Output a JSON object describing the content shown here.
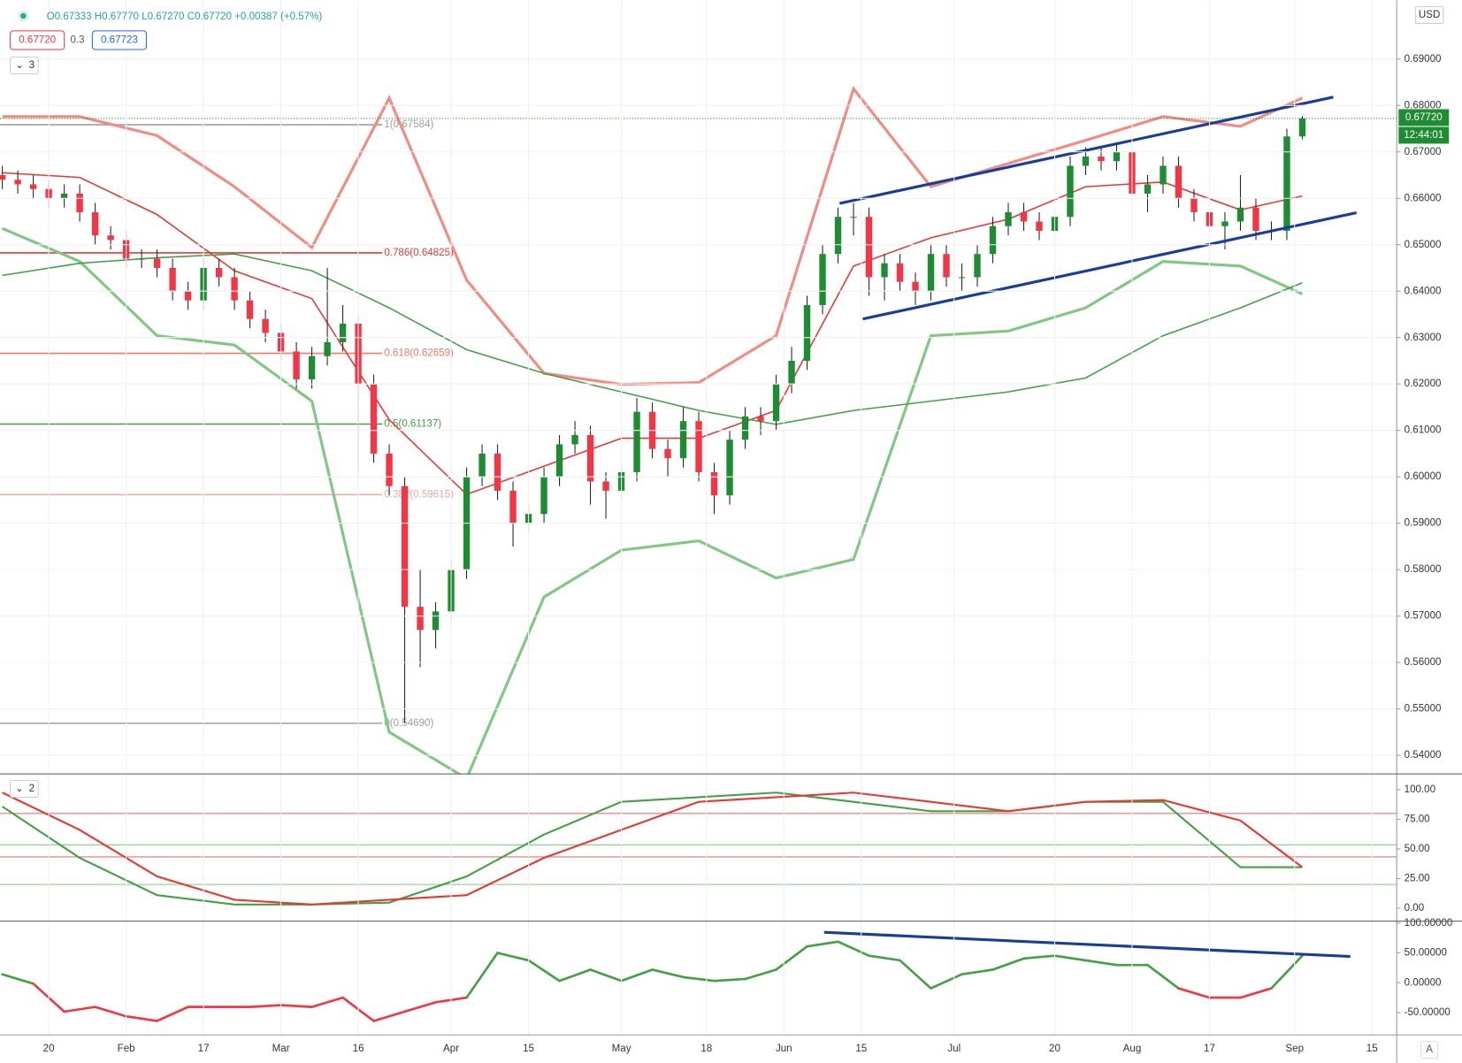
{
  "header": {
    "ohlc": "O0.67333 H0.67770 L0.67270 C0.67720 +0.00387 (+0.57%)",
    "box_1": "0.67720",
    "box_2": "0.3",
    "box_3": "0.67723",
    "pane_1_count": "3",
    "pane_2_count": "2",
    "currency": "USD",
    "price_tag": "0.67720",
    "countdown": "12:44:01",
    "scale_mode": "A"
  },
  "chart_data": [
    {
      "type": "candlestick",
      "color_up": "#1e8c32",
      "color_down": "#f23645",
      "x": [
        -6,
        -4,
        -2,
        0,
        2,
        4,
        6,
        8,
        10,
        12,
        14,
        16,
        18,
        20,
        22,
        24,
        26,
        28,
        30,
        32,
        34,
        36,
        38,
        40,
        42,
        44,
        46,
        48,
        50,
        52,
        54,
        56,
        58,
        60,
        62,
        64,
        66,
        68,
        70,
        72,
        74,
        76,
        78,
        80,
        82,
        84,
        86,
        88,
        90,
        92,
        94,
        96,
        98,
        100,
        102,
        104,
        106,
        108,
        110,
        112,
        114,
        116,
        118,
        120,
        122,
        124,
        126,
        128,
        130,
        132,
        134,
        136,
        138,
        140,
        142,
        144,
        146,
        148,
        150,
        152,
        154,
        156,
        158,
        160,
        162
      ],
      "open": [
        0.665,
        0.664,
        0.663,
        0.662,
        0.66,
        0.661,
        0.657,
        0.652,
        0.651,
        0.647,
        0.647,
        0.645,
        0.64,
        0.638,
        0.645,
        0.643,
        0.638,
        0.634,
        0.631,
        0.627,
        0.621,
        0.626,
        0.629,
        0.633,
        0.62,
        0.605,
        0.598,
        0.572,
        0.567,
        0.571,
        0.58,
        0.6,
        0.605,
        0.597,
        0.59,
        0.592,
        0.6,
        0.607,
        0.609,
        0.599,
        0.597,
        0.601,
        0.614,
        0.606,
        0.604,
        0.612,
        0.601,
        0.596,
        0.608,
        0.613,
        0.612,
        0.62,
        0.625,
        0.637,
        0.648,
        0.656,
        0.656,
        0.643,
        0.646,
        0.642,
        0.64,
        0.648,
        0.643,
        0.643,
        0.648,
        0.654,
        0.657,
        0.655,
        0.653,
        0.656,
        0.667,
        0.669,
        0.668,
        0.67,
        0.661,
        0.663,
        0.667,
        0.66,
        0.657,
        0.654,
        0.655,
        0.658,
        0.653,
        0.653,
        0.67333
      ],
      "high": [
        0.667,
        0.666,
        0.665,
        0.664,
        0.663,
        0.663,
        0.659,
        0.654,
        0.653,
        0.649,
        0.649,
        0.647,
        0.642,
        0.647,
        0.647,
        0.645,
        0.64,
        0.636,
        0.633,
        0.629,
        0.628,
        0.645,
        0.637,
        0.635,
        0.622,
        0.607,
        0.6,
        0.58,
        0.573,
        0.582,
        0.602,
        0.607,
        0.607,
        0.599,
        0.594,
        0.602,
        0.609,
        0.612,
        0.611,
        0.601,
        0.603,
        0.617,
        0.616,
        0.608,
        0.615,
        0.614,
        0.603,
        0.61,
        0.615,
        0.615,
        0.622,
        0.628,
        0.639,
        0.65,
        0.658,
        0.659,
        0.658,
        0.648,
        0.648,
        0.644,
        0.65,
        0.65,
        0.646,
        0.65,
        0.656,
        0.659,
        0.659,
        0.657,
        0.658,
        0.669,
        0.671,
        0.671,
        0.672,
        0.672,
        0.665,
        0.669,
        0.669,
        0.662,
        0.659,
        0.657,
        0.665,
        0.66,
        0.655,
        0.675,
        0.6777
      ],
      "low": [
        0.662,
        0.661,
        0.66,
        0.658,
        0.658,
        0.655,
        0.65,
        0.649,
        0.645,
        0.645,
        0.643,
        0.638,
        0.636,
        0.636,
        0.641,
        0.636,
        0.632,
        0.629,
        0.625,
        0.619,
        0.619,
        0.624,
        0.627,
        0.601,
        0.603,
        0.596,
        0.5469,
        0.559,
        0.563,
        0.569,
        0.578,
        0.598,
        0.595,
        0.585,
        0.588,
        0.59,
        0.598,
        0.605,
        0.594,
        0.591,
        0.595,
        0.599,
        0.604,
        0.6,
        0.602,
        0.599,
        0.592,
        0.594,
        0.606,
        0.609,
        0.61,
        0.618,
        0.623,
        0.635,
        0.646,
        0.652,
        0.639,
        0.638,
        0.64,
        0.637,
        0.638,
        0.641,
        0.64,
        0.641,
        0.646,
        0.652,
        0.653,
        0.651,
        0.651,
        0.654,
        0.665,
        0.666,
        0.666,
        0.659,
        0.657,
        0.661,
        0.658,
        0.655,
        0.652,
        0.649,
        0.653,
        0.651,
        0.651,
        0.651,
        0.6727
      ],
      "close": [
        0.664,
        0.663,
        0.662,
        0.66,
        0.661,
        0.657,
        0.652,
        0.651,
        0.647,
        0.647,
        0.645,
        0.64,
        0.638,
        0.645,
        0.643,
        0.638,
        0.634,
        0.631,
        0.627,
        0.621,
        0.626,
        0.629,
        0.633,
        0.62,
        0.605,
        0.598,
        0.572,
        0.567,
        0.571,
        0.58,
        0.6,
        0.605,
        0.597,
        0.59,
        0.592,
        0.6,
        0.607,
        0.609,
        0.599,
        0.597,
        0.601,
        0.614,
        0.606,
        0.604,
        0.612,
        0.601,
        0.596,
        0.608,
        0.613,
        0.612,
        0.62,
        0.625,
        0.637,
        0.648,
        0.656,
        0.656,
        0.643,
        0.646,
        0.642,
        0.64,
        0.648,
        0.643,
        0.643,
        0.648,
        0.654,
        0.657,
        0.655,
        0.653,
        0.656,
        0.667,
        0.669,
        0.668,
        0.67,
        0.661,
        0.663,
        0.667,
        0.66,
        0.657,
        0.654,
        0.655,
        0.658,
        0.653,
        0.653,
        0.67333,
        0.6772
      ],
      "overlay_x": [
        -6,
        4,
        14,
        24,
        34,
        44,
        54,
        64,
        74,
        84,
        94,
        104,
        114,
        124,
        134,
        144,
        154,
        162
      ],
      "overlays": [
        {
          "color": "#f28b82",
          "width": 3,
          "values": [
            0.6776,
            0.6776,
            0.6735,
            0.6625,
            0.6494,
            0.6816,
            0.6424,
            0.6223,
            0.6199,
            0.6203,
            0.6304,
            0.6836,
            0.6625,
            0.6675,
            0.6725,
            0.6776,
            0.6755,
            0.6816
          ]
        },
        {
          "color": "#81c784",
          "width": 3,
          "values": [
            0.6535,
            0.6464,
            0.6304,
            0.6284,
            0.6163,
            0.545,
            0.535,
            0.5741,
            0.5842,
            0.5862,
            0.5782,
            0.5822,
            0.6304,
            0.6314,
            0.6364,
            0.6464,
            0.6454,
            0.6394
          ]
        },
        {
          "color": "#e53935",
          "width": 1.5,
          "values": [
            0.6655,
            0.6645,
            0.6565,
            0.6444,
            0.6384,
            0.6123,
            0.5962,
            0.6023,
            0.6083,
            0.6083,
            0.6143,
            0.6454,
            0.6515,
            0.6555,
            0.6625,
            0.6635,
            0.6575,
            0.6605
          ]
        },
        {
          "color": "#43a047",
          "width": 1.5,
          "values": [
            0.6434,
            0.646,
            0.6472,
            0.648,
            0.6444,
            0.6364,
            0.6274,
            0.6223,
            0.6183,
            0.6143,
            0.6113,
            0.6143,
            0.6163,
            0.6183,
            0.6213,
            0.6304,
            0.6364,
            0.6418
          ]
        }
      ],
      "fib_levels": [
        {
          "value": 0.67584,
          "label": "1(0.67584)",
          "color": "#9e9e9e"
        },
        {
          "value": 0.64825,
          "label": "0.786(0.64825)",
          "color": "#e53935"
        },
        {
          "value": 0.62659,
          "label": "0.618(0.62659)",
          "color": "#ef7b6b"
        },
        {
          "value": 0.61137,
          "label": "0.5(0.61137)",
          "color": "#43a047"
        },
        {
          "value": 0.59615,
          "label": "0.382(0.59615)",
          "color": "#f4a6a0"
        },
        {
          "value": 0.5469,
          "label": "0(0.54690)",
          "color": "#9e9e9e"
        }
      ],
      "trendlines": [
        {
          "x": [
            102.2,
            166
          ],
          "values": [
            0.6589,
            0.6818
          ]
        },
        {
          "x": [
            105.2,
            169
          ],
          "values": [
            0.634,
            0.6569
          ]
        }
      ],
      "trend_color": "#1a3d9c",
      "last_price": 0.6772,
      "xlim": [
        -6.3,
        174.2
      ],
      "xticks": [
        {
          "value": 0,
          "label": "20"
        },
        {
          "value": 10,
          "label": "Feb"
        },
        {
          "value": 20,
          "label": "17"
        },
        {
          "value": 30,
          "label": "Mar"
        },
        {
          "value": 40,
          "label": "16"
        },
        {
          "value": 52,
          "label": "Apr"
        },
        {
          "value": 62,
          "label": "15"
        },
        {
          "value": 74,
          "label": "May"
        },
        {
          "value": 85,
          "label": "18"
        },
        {
          "value": 95,
          "label": "Jun"
        },
        {
          "value": 105,
          "label": "15"
        },
        {
          "value": 117,
          "label": "Jul"
        },
        {
          "value": 130,
          "label": "20"
        },
        {
          "value": 140,
          "label": "Aug"
        },
        {
          "value": 150,
          "label": "17"
        },
        {
          "value": 161,
          "label": "Sep"
        },
        {
          "value": 171,
          "label": "15"
        }
      ],
      "ylim": [
        0.536,
        0.7027
      ],
      "yticks": [
        {
          "value": 0.54,
          "label": "0.54000"
        },
        {
          "value": 0.55,
          "label": "0.55000"
        },
        {
          "value": 0.56,
          "label": "0.56000"
        },
        {
          "value": 0.57,
          "label": "0.57000"
        },
        {
          "value": 0.58,
          "label": "0.58000"
        },
        {
          "value": 0.59,
          "label": "0.59000"
        },
        {
          "value": 0.6,
          "label": "0.60000"
        },
        {
          "value": 0.61,
          "label": "0.61000"
        },
        {
          "value": 0.62,
          "label": "0.62000"
        },
        {
          "value": 0.63,
          "label": "0.63000"
        },
        {
          "value": 0.64,
          "label": "0.64000"
        },
        {
          "value": 0.65,
          "label": "0.65000"
        },
        {
          "value": 0.66,
          "label": "0.66000"
        },
        {
          "value": 0.67,
          "label": "0.67000"
        },
        {
          "value": 0.68,
          "label": "0.68000"
        },
        {
          "value": 0.69,
          "label": "0.69000"
        }
      ],
      "grid": true
    },
    {
      "type": "line",
      "x": [
        -6,
        4,
        14,
        24,
        34,
        44,
        54,
        64,
        74,
        84,
        94,
        104,
        114,
        124,
        134,
        144,
        154,
        162
      ],
      "series": [
        {
          "color": "#43a047",
          "values": [
            85.8,
            42.5,
            11.0,
            3.1,
            3.1,
            4.7,
            26.8,
            62.2,
            89.8,
            93.7,
            97.6,
            89.8,
            81.9,
            81.9,
            89.8,
            89.8,
            34.6,
            34.6
          ]
        },
        {
          "color": "#e53935",
          "values": [
            97.6,
            66.1,
            26.8,
            7.1,
            3.1,
            7.1,
            11.0,
            42.5,
            66.1,
            89.8,
            93.7,
            97.6,
            89.8,
            81.9,
            89.8,
            91.3,
            74.0,
            34.6
          ]
        }
      ],
      "levels": [
        {
          "value": 80,
          "color": "#e57373"
        },
        {
          "value": 53.5,
          "color": "#81c784"
        },
        {
          "value": 43.3,
          "color": "#e57373"
        },
        {
          "value": 20,
          "color": "#81c784"
        }
      ],
      "ylim": [
        -11,
        113.4
      ],
      "yticks": [
        {
          "value": 0,
          "label": "0.00"
        },
        {
          "value": 25,
          "label": "25.00"
        },
        {
          "value": 50,
          "label": "50.00"
        },
        {
          "value": 75,
          "label": "75.00"
        },
        {
          "value": 100,
          "label": "100.00"
        }
      ]
    },
    {
      "type": "line",
      "color_up": "#43a047",
      "color_down": "#f23645",
      "x": [
        -6,
        -2,
        2,
        6,
        10,
        14,
        18,
        22,
        26,
        30,
        34,
        38,
        42,
        46,
        50,
        54,
        58,
        62,
        66,
        70,
        74,
        78,
        82,
        86,
        90,
        94,
        98,
        102,
        106,
        110,
        114,
        118,
        122,
        126,
        130,
        134,
        138,
        142,
        146,
        150,
        154,
        158,
        162
      ],
      "values": [
        14.1,
        -1.6,
        -48.4,
        -40.6,
        -56.3,
        -64.1,
        -40.6,
        -40.6,
        -40.6,
        -37.5,
        -40.6,
        -25.0,
        -64.1,
        -48.4,
        -32.8,
        -25.0,
        50.0,
        37.5,
        3.1,
        21.9,
        3.1,
        21.9,
        9.4,
        3.1,
        6.3,
        21.9,
        60.9,
        68.8,
        45.3,
        37.5,
        -9.4,
        14.1,
        21.9,
        40.6,
        45.3,
        37.5,
        29.7,
        29.7,
        -9.4,
        -25.0,
        -25.0,
        -9.4,
        45.3
      ],
      "trendline": {
        "x": [
          100.2,
          168.2
        ],
        "values": [
          84.5,
          44
        ]
      },
      "ylim": [
        -87.5,
        103.1
      ],
      "yticks": [
        {
          "value": -50,
          "label": "-50.00000"
        },
        {
          "value": 0,
          "label": "0.00000"
        },
        {
          "value": 50,
          "label": "50.00000"
        },
        {
          "value": 100,
          "label": "100.00000"
        }
      ]
    }
  ]
}
